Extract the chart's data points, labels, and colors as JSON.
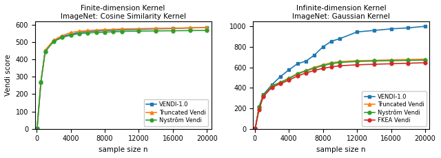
{
  "left_title1": "Finite-dimension Kernel",
  "left_title2": "ImageNet: Cosine Similarity Kernel",
  "right_title1": "Infinite-dimension Kernel",
  "right_title2": "ImageNet: Gaussian Kernel",
  "xlabel": "sample size n",
  "ylabel": "Vendi score",
  "x": [
    50,
    500,
    1000,
    2000,
    3000,
    4000,
    5000,
    6000,
    7000,
    8000,
    9000,
    10000,
    12000,
    14000,
    16000,
    18000,
    20000
  ],
  "left_vendi10": [
    2,
    270,
    450,
    505,
    530,
    545,
    555,
    560,
    564,
    566,
    568,
    570,
    573,
    576,
    578,
    581,
    584
  ],
  "left_truncated": [
    2,
    270,
    453,
    511,
    537,
    555,
    562,
    566,
    569,
    571,
    573,
    575,
    577,
    579,
    580,
    582,
    583
  ],
  "left_nystrom": [
    2,
    268,
    444,
    503,
    526,
    540,
    548,
    552,
    555,
    557,
    559,
    561,
    563,
    564,
    565,
    566,
    567
  ],
  "right_vendi10": [
    5,
    215,
    335,
    430,
    510,
    575,
    635,
    660,
    720,
    800,
    855,
    880,
    945,
    960,
    975,
    985,
    1000
  ],
  "right_truncated": [
    5,
    212,
    330,
    420,
    455,
    495,
    540,
    570,
    600,
    625,
    645,
    655,
    665,
    668,
    673,
    676,
    680
  ],
  "right_nystrom": [
    5,
    212,
    328,
    418,
    450,
    490,
    535,
    565,
    592,
    618,
    635,
    648,
    657,
    662,
    665,
    668,
    670
  ],
  "right_fkea": [
    5,
    190,
    315,
    405,
    440,
    475,
    515,
    545,
    570,
    590,
    605,
    615,
    625,
    630,
    635,
    640,
    645
  ],
  "color_vendi10": "#1f77b4",
  "color_truncated": "#ff7f0e",
  "color_nystrom": "#2ca02c",
  "color_fkea": "#d62728",
  "left_ylim": [
    0,
    620
  ],
  "right_ylim": [
    0,
    1050
  ],
  "left_yticks": [
    0,
    100,
    200,
    300,
    400,
    500,
    600
  ],
  "right_yticks": [
    0,
    200,
    400,
    600,
    800,
    1000
  ],
  "xticks": [
    0,
    4000,
    8000,
    12000,
    16000,
    20000
  ]
}
